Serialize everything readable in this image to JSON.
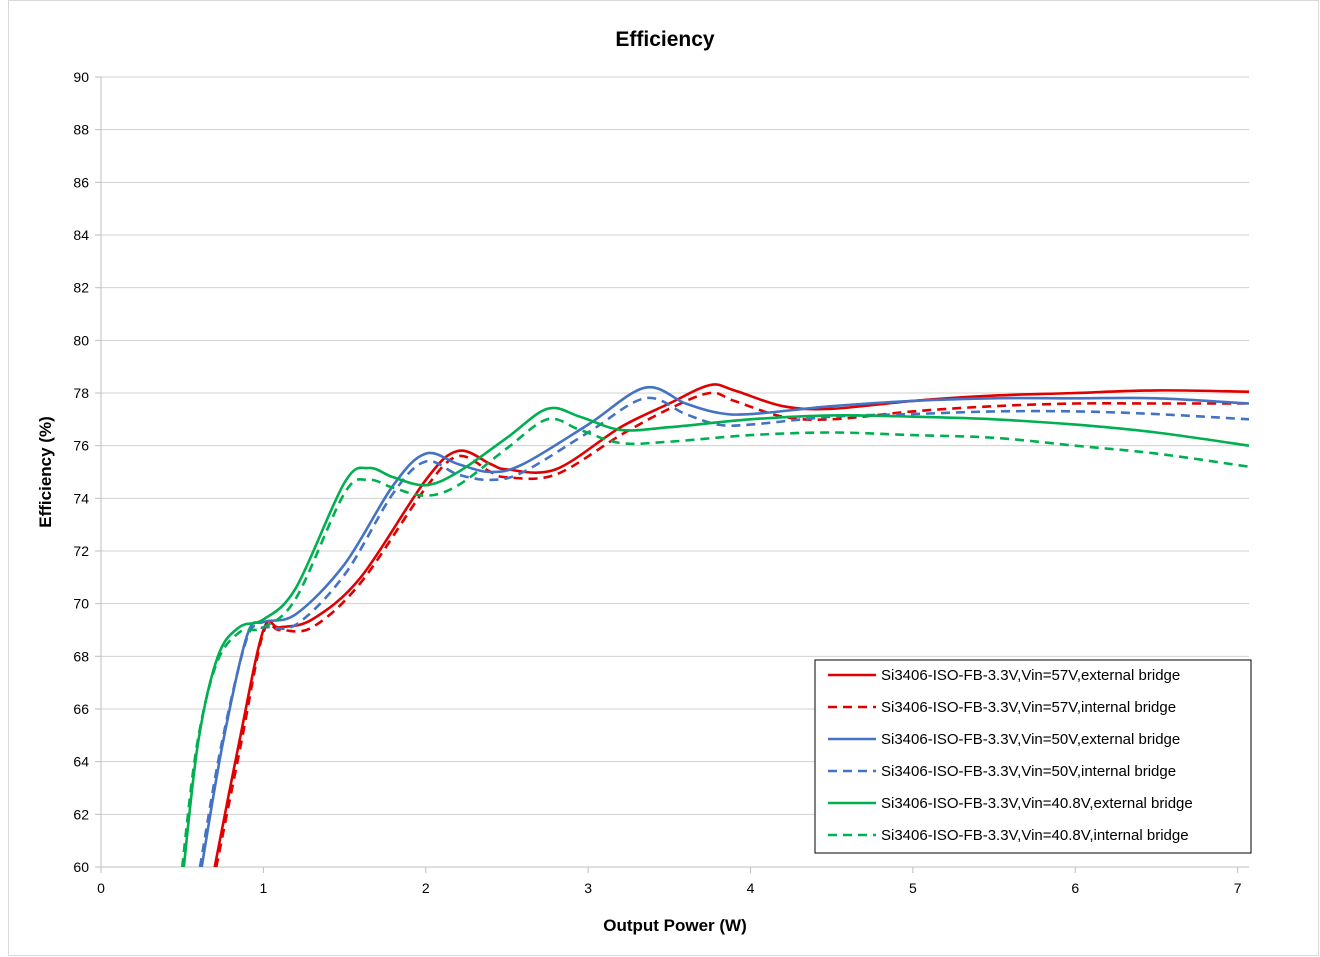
{
  "chart_data": {
    "type": "line",
    "title": "Efficiency",
    "xlabel": "Output Power (W)",
    "ylabel": "Efficiency (%)",
    "xlim": [
      0,
      7.07
    ],
    "ylim": [
      60,
      90
    ],
    "xticks": [
      0,
      1,
      2,
      3,
      4,
      5,
      6,
      7
    ],
    "yticks": [
      60,
      62,
      64,
      66,
      68,
      70,
      72,
      74,
      76,
      78,
      80,
      82,
      84,
      86,
      88,
      90
    ],
    "grid": "horizontal",
    "legend_position": "bottom-right",
    "series": [
      {
        "name": "Si3406-ISO-FB-3.3V,Vin=57V,external bridge",
        "color": "#e00000",
        "dash": "solid",
        "points": [
          [
            0.7,
            60.0
          ],
          [
            0.85,
            64.7
          ],
          [
            1.0,
            69.0
          ],
          [
            1.1,
            69.1
          ],
          [
            1.3,
            69.4
          ],
          [
            1.6,
            71.0
          ],
          [
            2.0,
            74.7
          ],
          [
            2.2,
            75.8
          ],
          [
            2.4,
            75.3
          ],
          [
            2.5,
            75.1
          ],
          [
            2.8,
            75.1
          ],
          [
            3.2,
            76.7
          ],
          [
            3.5,
            77.6
          ],
          [
            3.75,
            78.3
          ],
          [
            3.9,
            78.1
          ],
          [
            4.2,
            77.5
          ],
          [
            4.5,
            77.4
          ],
          [
            5.0,
            77.7
          ],
          [
            5.5,
            77.9
          ],
          [
            6.0,
            78.0
          ],
          [
            6.5,
            78.1
          ],
          [
            7.07,
            78.05
          ]
        ]
      },
      {
        "name": "Si3406-ISO-FB-3.3V,Vin=57V,internal bridge",
        "color": "#e00000",
        "dash": "dashed",
        "points": [
          [
            0.71,
            60.0
          ],
          [
            0.86,
            64.6
          ],
          [
            1.0,
            68.9
          ],
          [
            1.1,
            69.0
          ],
          [
            1.3,
            69.1
          ],
          [
            1.6,
            70.8
          ],
          [
            2.0,
            74.4
          ],
          [
            2.2,
            75.6
          ],
          [
            2.4,
            75.0
          ],
          [
            2.5,
            74.8
          ],
          [
            2.8,
            74.9
          ],
          [
            3.2,
            76.4
          ],
          [
            3.5,
            77.4
          ],
          [
            3.75,
            78.0
          ],
          [
            3.9,
            77.7
          ],
          [
            4.2,
            77.1
          ],
          [
            4.5,
            77.0
          ],
          [
            5.0,
            77.3
          ],
          [
            5.5,
            77.5
          ],
          [
            6.0,
            77.6
          ],
          [
            6.5,
            77.6
          ],
          [
            7.07,
            77.6
          ]
        ]
      },
      {
        "name": "Si3406-ISO-FB-3.3V,Vin=50V,external bridge",
        "color": "#4472c4",
        "dash": "solid",
        "points": [
          [
            0.62,
            60.0
          ],
          [
            0.75,
            64.7
          ],
          [
            0.9,
            68.8
          ],
          [
            1.0,
            69.3
          ],
          [
            1.2,
            69.6
          ],
          [
            1.5,
            71.5
          ],
          [
            1.8,
            74.5
          ],
          [
            2.0,
            75.7
          ],
          [
            2.2,
            75.3
          ],
          [
            2.4,
            75.0
          ],
          [
            2.6,
            75.3
          ],
          [
            3.0,
            76.8
          ],
          [
            3.35,
            78.2
          ],
          [
            3.6,
            77.6
          ],
          [
            3.8,
            77.25
          ],
          [
            4.0,
            77.2
          ],
          [
            4.5,
            77.5
          ],
          [
            5.0,
            77.7
          ],
          [
            5.5,
            77.8
          ],
          [
            6.0,
            77.8
          ],
          [
            6.5,
            77.8
          ],
          [
            7.07,
            77.6
          ]
        ]
      },
      {
        "name": "Si3406-ISO-FB-3.3V,Vin=50V,internal bridge",
        "color": "#4472c4",
        "dash": "dashed",
        "points": [
          [
            0.61,
            60.0
          ],
          [
            0.74,
            64.6
          ],
          [
            0.9,
            68.7
          ],
          [
            1.0,
            69.1
          ],
          [
            1.2,
            69.2
          ],
          [
            1.5,
            71.1
          ],
          [
            1.8,
            74.2
          ],
          [
            2.0,
            75.4
          ],
          [
            2.2,
            74.9
          ],
          [
            2.4,
            74.7
          ],
          [
            2.6,
            75.0
          ],
          [
            3.0,
            76.5
          ],
          [
            3.35,
            77.8
          ],
          [
            3.6,
            77.2
          ],
          [
            3.8,
            76.8
          ],
          [
            4.0,
            76.8
          ],
          [
            4.5,
            77.1
          ],
          [
            5.0,
            77.2
          ],
          [
            5.5,
            77.3
          ],
          [
            6.0,
            77.3
          ],
          [
            6.5,
            77.2
          ],
          [
            7.07,
            77.0
          ]
        ]
      },
      {
        "name": "Si3406-ISO-FB-3.3V,Vin=40.8V,external bridge",
        "color": "#00b050",
        "dash": "solid",
        "points": [
          [
            0.51,
            60.0
          ],
          [
            0.6,
            64.8
          ],
          [
            0.72,
            68.0
          ],
          [
            0.85,
            69.1
          ],
          [
            1.0,
            69.4
          ],
          [
            1.2,
            70.6
          ],
          [
            1.5,
            74.6
          ],
          [
            1.65,
            75.15
          ],
          [
            1.8,
            74.8
          ],
          [
            2.0,
            74.5
          ],
          [
            2.2,
            75.0
          ],
          [
            2.5,
            76.3
          ],
          [
            2.75,
            77.4
          ],
          [
            2.95,
            77.1
          ],
          [
            3.2,
            76.6
          ],
          [
            3.5,
            76.7
          ],
          [
            4.0,
            77.0
          ],
          [
            4.5,
            77.15
          ],
          [
            5.0,
            77.1
          ],
          [
            5.5,
            77.0
          ],
          [
            6.0,
            76.8
          ],
          [
            6.5,
            76.5
          ],
          [
            7.07,
            76.0
          ]
        ]
      },
      {
        "name": "Si3406-ISO-FB-3.3V,Vin=40.8V,internal bridge",
        "color": "#00b050",
        "dash": "dashed",
        "points": [
          [
            0.5,
            60.0
          ],
          [
            0.59,
            64.6
          ],
          [
            0.71,
            67.7
          ],
          [
            0.85,
            68.9
          ],
          [
            1.0,
            69.1
          ],
          [
            1.2,
            70.2
          ],
          [
            1.5,
            74.2
          ],
          [
            1.65,
            74.7
          ],
          [
            1.8,
            74.4
          ],
          [
            2.0,
            74.1
          ],
          [
            2.2,
            74.5
          ],
          [
            2.5,
            75.9
          ],
          [
            2.75,
            77.0
          ],
          [
            2.95,
            76.6
          ],
          [
            3.2,
            76.1
          ],
          [
            3.5,
            76.15
          ],
          [
            4.0,
            76.4
          ],
          [
            4.5,
            76.5
          ],
          [
            5.0,
            76.4
          ],
          [
            5.5,
            76.3
          ],
          [
            6.0,
            76.0
          ],
          [
            6.5,
            75.7
          ],
          [
            7.07,
            75.2
          ]
        ]
      }
    ]
  }
}
